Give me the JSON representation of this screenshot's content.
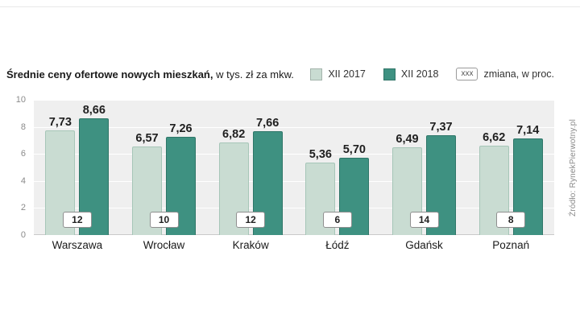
{
  "header": {
    "title_bold": "Średnie ceny ofertowe nowych mieszkań,",
    "title_rest": " w tys. zł za mkw.",
    "legend": [
      {
        "label": "XII 2017"
      },
      {
        "label": "XII 2018"
      }
    ],
    "legend_change_box": "xxx",
    "legend_change_label": "zmiana, w proc."
  },
  "source": "Źródło: RynekPierwotny.pl",
  "chart_data": {
    "type": "bar",
    "categories": [
      "Warszawa",
      "Wrocław",
      "Kraków",
      "Łódź",
      "Gdańsk",
      "Poznań"
    ],
    "series": [
      {
        "name": "XII 2017",
        "values": [
          7.73,
          6.57,
          6.82,
          5.36,
          6.49,
          6.62
        ]
      },
      {
        "name": "XII 2018",
        "values": [
          8.66,
          7.26,
          7.66,
          5.7,
          7.37,
          7.14
        ]
      }
    ],
    "value_labels": [
      [
        "7,73",
        "8,66"
      ],
      [
        "6,57",
        "7,26"
      ],
      [
        "6,82",
        "7,66"
      ],
      [
        "5,36",
        "5,70"
      ],
      [
        "6,49",
        "7,37"
      ],
      [
        "6,62",
        "7,14"
      ]
    ],
    "change_percent": [
      "12",
      "10",
      "12",
      "6",
      "14",
      "8"
    ],
    "ylim": [
      0,
      10
    ],
    "yticks": [
      0,
      2,
      4,
      6,
      8,
      10
    ],
    "grid": true,
    "legend_position": "top-right",
    "colors": {
      "s2017": "#c9dcd2",
      "s2017_border": "#a6c6b8",
      "s2018": "#3e9181",
      "s2018_border": "#2e7668",
      "plot_bg": "#efefef"
    }
  }
}
